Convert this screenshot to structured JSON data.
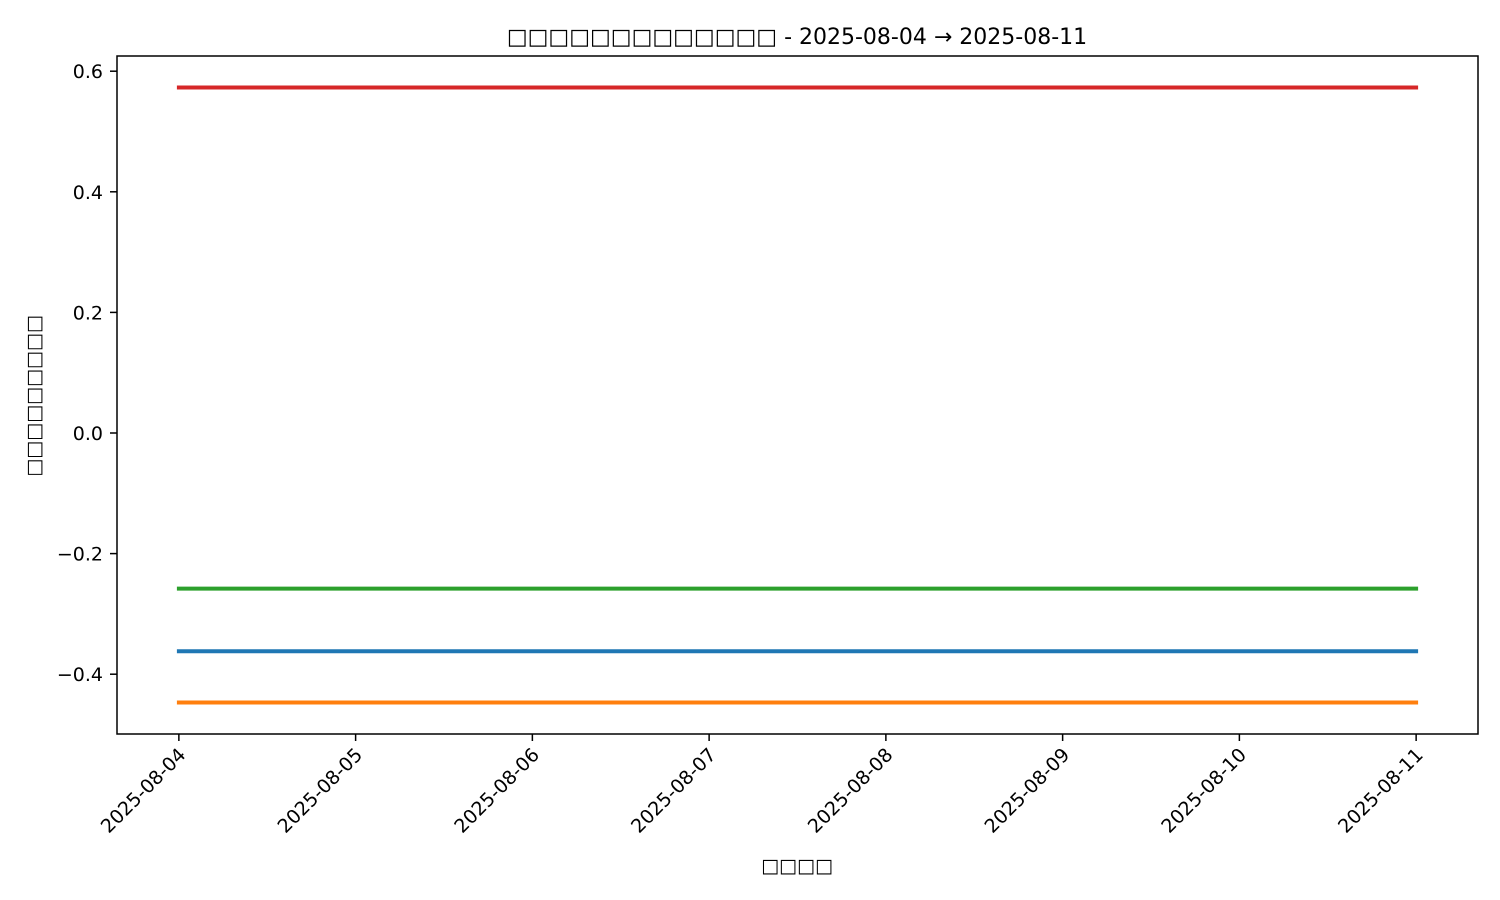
{
  "chart_data": {
    "type": "line",
    "title": "□□□□□□□□□□□□□ - 2025-08-04 → 2025-08-11",
    "xlabel": "□□□□",
    "ylabel": "□□□□□□□□□",
    "x": [
      "2025-08-04",
      "2025-08-05",
      "2025-08-06",
      "2025-08-07",
      "2025-08-08",
      "2025-08-09",
      "2025-08-10",
      "2025-08-11"
    ],
    "xlim": [
      "2025-08-04",
      "2025-08-11"
    ],
    "ylim": [
      -0.5,
      0.6
    ],
    "yticks": [
      {
        "value": -0.4,
        "label": "−0.4"
      },
      {
        "value": -0.2,
        "label": "−0.2"
      },
      {
        "value": 0.0,
        "label": "0.0"
      },
      {
        "value": 0.2,
        "label": "0.2"
      },
      {
        "value": 0.4,
        "label": "0.4"
      },
      {
        "value": 0.6,
        "label": "0.6"
      }
    ],
    "grid": false,
    "legend": "none",
    "series": [
      {
        "color": "#1f77b4",
        "values": [
          -0.362,
          -0.362,
          -0.362,
          -0.362,
          -0.362,
          -0.362,
          -0.362,
          -0.362
        ]
      },
      {
        "color": "#ff7f0e",
        "values": [
          -0.447,
          -0.447,
          -0.447,
          -0.447,
          -0.447,
          -0.447,
          -0.447,
          -0.447
        ]
      },
      {
        "color": "#2ca02c",
        "values": [
          -0.258,
          -0.258,
          -0.258,
          -0.258,
          -0.258,
          -0.258,
          -0.258,
          -0.258
        ]
      },
      {
        "color": "#d62728",
        "values": [
          0.573,
          0.573,
          0.573,
          0.573,
          0.573,
          0.573,
          0.573,
          0.573
        ]
      }
    ]
  }
}
